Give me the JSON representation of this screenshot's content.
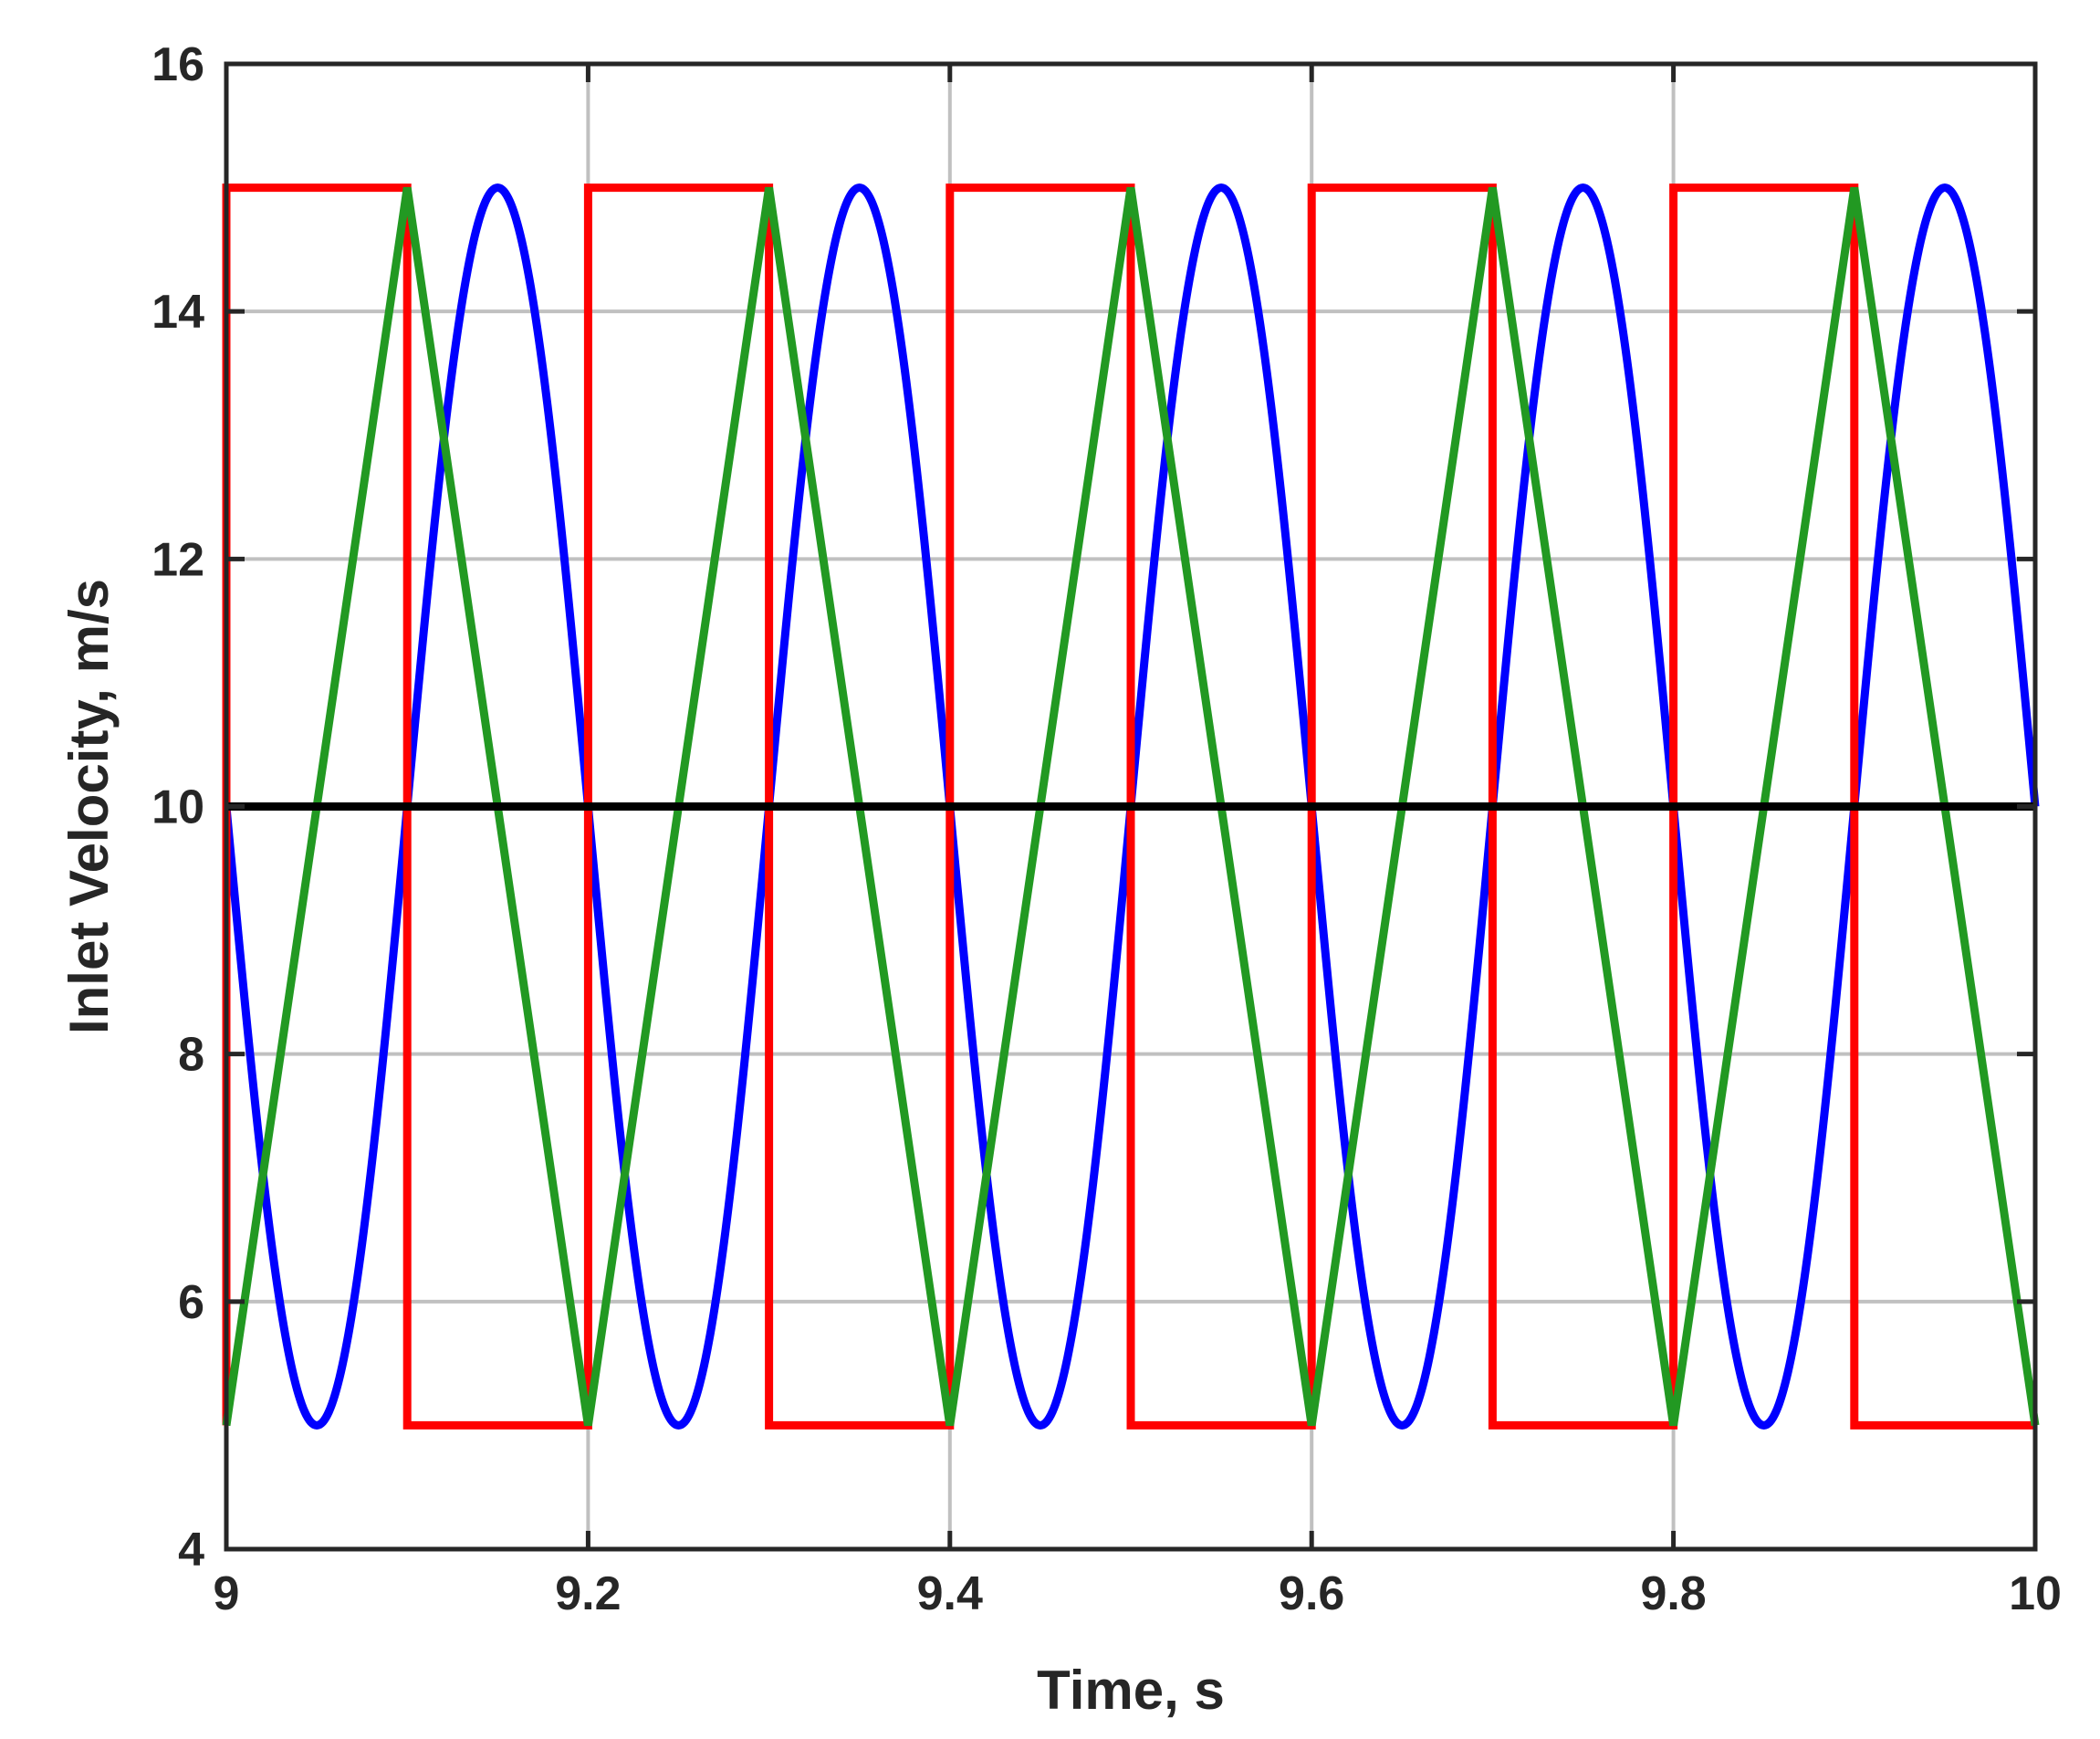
{
  "chart_data": {
    "type": "line",
    "title": "",
    "xlabel": "Time, s",
    "ylabel": "Inlet Velocity, m/s",
    "xlim": [
      9,
      10
    ],
    "ylim": [
      4,
      16
    ],
    "xticks": [
      9,
      9.2,
      9.4,
      9.6,
      9.8,
      10
    ],
    "xtick_labels": [
      "9",
      "9.2",
      "9.4",
      "9.6",
      "9.8",
      "10"
    ],
    "yticks": [
      4,
      6,
      8,
      10,
      12,
      14,
      16
    ],
    "ytick_labels": [
      "4",
      "6",
      "8",
      "10",
      "12",
      "14",
      "16"
    ],
    "grid": true,
    "legend": "none",
    "series": [
      {
        "color": "#0000ff",
        "shape": "sine",
        "x": [
          9.0,
          9.05,
          9.1,
          9.15,
          9.2,
          9.25,
          9.3,
          9.35,
          9.4,
          9.45,
          9.5,
          9.55,
          9.6,
          9.65,
          9.7,
          9.75,
          9.8,
          9.85,
          9.9,
          9.95,
          10.0
        ],
        "y": [
          10,
          5,
          10,
          15,
          10,
          5,
          10,
          15,
          10,
          5,
          10,
          15,
          10,
          5,
          10,
          15,
          10,
          5,
          10,
          15,
          10
        ]
      },
      {
        "color": "#ff0000",
        "shape": "step",
        "x": [
          9.0,
          9.0,
          9.1,
          9.1,
          9.2,
          9.2,
          9.3,
          9.3,
          9.4,
          9.4,
          9.5,
          9.5,
          9.6,
          9.6,
          9.7,
          9.7,
          9.8,
          9.8,
          9.9,
          9.9,
          10.0
        ],
        "y": [
          5,
          15,
          15,
          5,
          5,
          15,
          15,
          5,
          5,
          15,
          15,
          5,
          5,
          15,
          15,
          5,
          5,
          15,
          15,
          5,
          5
        ]
      },
      {
        "color": "#229922",
        "shape": "triangle",
        "x": [
          9.0,
          9.1,
          9.2,
          9.3,
          9.4,
          9.5,
          9.6,
          9.7,
          9.8,
          9.9,
          10.0
        ],
        "y": [
          5,
          15,
          5,
          15,
          5,
          15,
          5,
          15,
          5,
          15,
          5
        ]
      },
      {
        "color": "#000000",
        "shape": "constant",
        "x": [
          9.0,
          10.0
        ],
        "y": [
          10,
          10
        ]
      }
    ]
  }
}
